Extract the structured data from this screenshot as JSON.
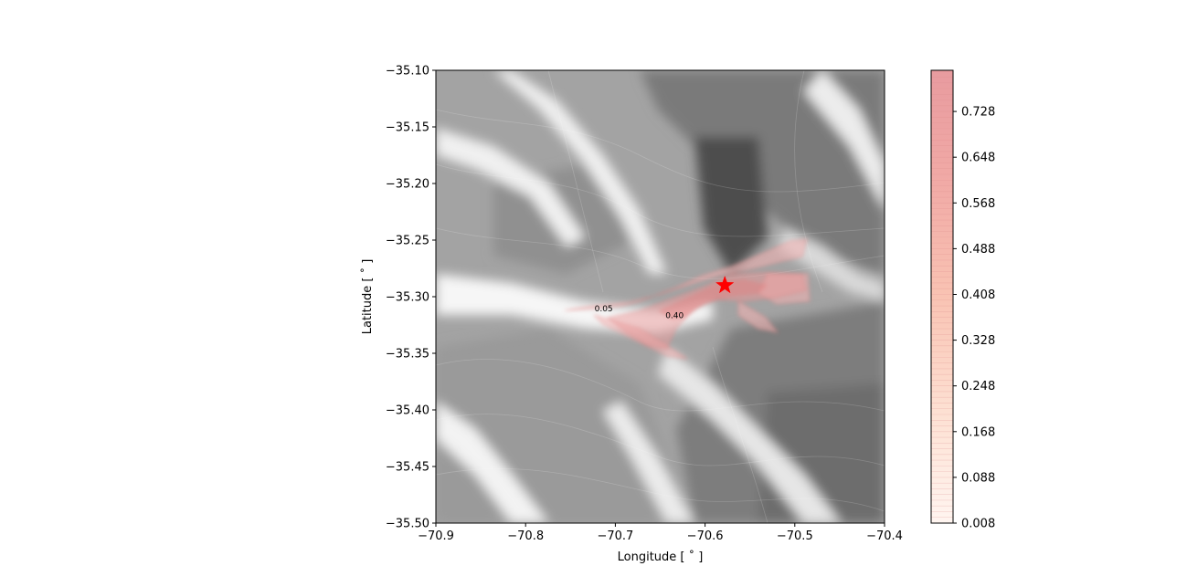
{
  "chart_data": {
    "type": "heatmap",
    "title": "",
    "xlabel": "Longitude [$^\\circ$]",
    "ylabel": "Latitude [$^\\circ$]",
    "xlabel_display": "Longitude [ ˚ ]",
    "ylabel_display": "Latitude [ ˚ ]",
    "xlim": [
      -70.9,
      -70.4
    ],
    "ylim": [
      -35.5,
      -35.1
    ],
    "x_ticks": [
      -70.9,
      -70.8,
      -70.7,
      -70.6,
      -70.5,
      -70.4
    ],
    "x_tick_labels": [
      "−70.9",
      "−70.8",
      "−70.7",
      "−70.6",
      "−70.5",
      "−70.4"
    ],
    "y_ticks": [
      -35.1,
      -35.15,
      -35.2,
      -35.25,
      -35.3,
      -35.35,
      -35.4,
      -35.45,
      -35.5
    ],
    "y_tick_labels": [
      "−35.10",
      "−35.15",
      "−35.20",
      "−35.25",
      "−35.30",
      "−35.35",
      "−35.40",
      "−35.45",
      "−35.50"
    ],
    "background": "grayscale topography (shaded relief with contour lines)",
    "hazard_probability": {
      "colormap": "Reds",
      "alpha": 0.3,
      "contour_labels": [
        {
          "text": "0.05",
          "x": -70.713,
          "y": -35.313
        },
        {
          "text": "0.40",
          "x": -70.634,
          "y": -35.319
        }
      ]
    },
    "vent": {
      "marker": "star",
      "color": "#ff0000",
      "x": -70.578,
      "y": -35.29
    },
    "colorbar": {
      "ticks": [
        0.008,
        0.088,
        0.168,
        0.248,
        0.328,
        0.408,
        0.488,
        0.568,
        0.648,
        0.728
      ],
      "tick_labels": [
        "0.008",
        "0.088",
        "0.168",
        "0.248",
        "0.328",
        "0.408",
        "0.488",
        "0.568",
        "0.648",
        "0.728"
      ],
      "range": [
        0.008,
        0.8
      ]
    },
    "grid": false,
    "legend": "none"
  }
}
